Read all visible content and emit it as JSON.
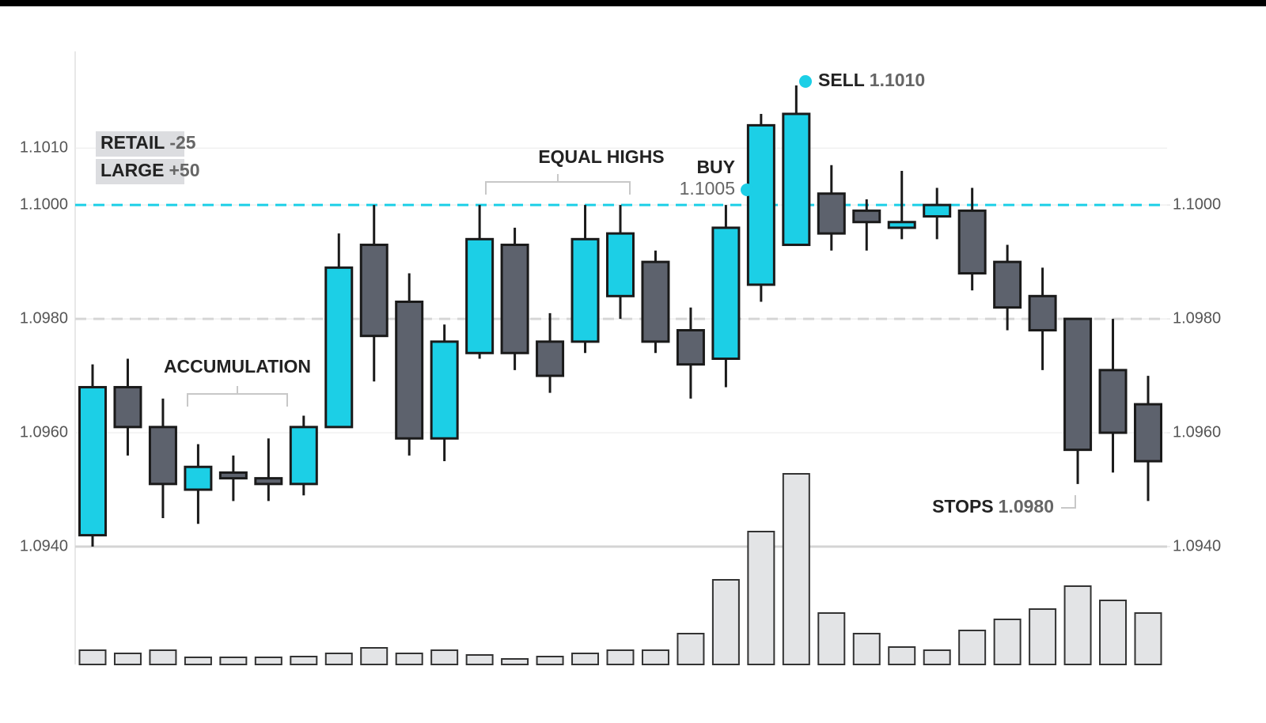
{
  "chart_data": {
    "type": "candlestick",
    "ylim": [
      1.094,
      1.1026
    ],
    "yticks": [
      {
        "value": 1.094,
        "label": "1.0940"
      },
      {
        "value": 1.096,
        "label": "1.0960"
      },
      {
        "value": 1.098,
        "label": "1.0980"
      },
      {
        "value": 1.1,
        "label": "1.1000"
      },
      {
        "value": 1.101,
        "label": "1.1010"
      }
    ],
    "y2lim": [
      1.094,
      1.1026
    ],
    "y2ticks": [
      {
        "value": 1.094,
        "label": "1.0940"
      },
      {
        "value": 1.096,
        "label": "1.0960"
      },
      {
        "value": 1.098,
        "label": "1.0980"
      },
      {
        "value": 1.1,
        "label": "1.1000"
      }
    ],
    "grid": true,
    "bull_color": "#1ccfe6",
    "bear_color": "#5d626d",
    "candles": {
      "open": [
        1.0942,
        1.0968,
        1.0961,
        1.095,
        1.0953,
        1.0952,
        1.0951,
        1.0961,
        1.0993,
        1.0983,
        1.0959,
        1.0974,
        1.0993,
        1.0976,
        1.0976,
        1.0984,
        1.099,
        1.0978,
        1.0973,
        1.0986,
        1.0993,
        1.1002,
        1.0999,
        1.0996,
        1.0998,
        1.0999,
        1.099,
        1.0984,
        1.098,
        1.0971,
        1.0965
      ],
      "high": [
        1.0972,
        1.0973,
        1.0966,
        1.0958,
        1.0956,
        1.0959,
        1.0963,
        1.0995,
        1.1,
        1.0988,
        1.0979,
        1.1,
        1.0996,
        1.0981,
        1.1,
        1.1,
        1.0992,
        1.0982,
        1.1,
        1.1016,
        1.1021,
        1.1007,
        1.1001,
        1.1006,
        1.1003,
        1.1003,
        1.0993,
        1.0989,
        1.098,
        1.098,
        1.097
      ],
      "low": [
        1.094,
        1.0956,
        1.0945,
        1.0944,
        1.0948,
        1.0948,
        1.0949,
        1.0961,
        1.0969,
        1.0956,
        1.0955,
        1.0973,
        1.0971,
        1.0967,
        1.0974,
        1.098,
        1.0974,
        1.0966,
        1.0968,
        1.0983,
        1.0993,
        1.0992,
        1.0992,
        1.0994,
        1.0994,
        1.0985,
        1.0978,
        1.0971,
        1.0951,
        1.0953,
        1.0948
      ],
      "close": [
        1.0968,
        1.0961,
        1.0951,
        1.0954,
        1.0952,
        1.0951,
        1.0961,
        1.0989,
        1.0977,
        1.0959,
        1.0976,
        1.0994,
        1.0974,
        1.097,
        1.0994,
        1.0995,
        1.0976,
        1.0972,
        1.0996,
        1.1014,
        1.1016,
        1.0995,
        1.0997,
        1.0997,
        1.1,
        1.0988,
        1.0982,
        1.0978,
        1.0957,
        1.096,
        1.0955
      ]
    },
    "volume": {
      "color": "#e3e4e6",
      "values": [
        18,
        14,
        18,
        9,
        9,
        9,
        10,
        14,
        21,
        14,
        18,
        12,
        7,
        10,
        14,
        18,
        18,
        39,
        107,
        168,
        241,
        65,
        39,
        22,
        18,
        43,
        57,
        70,
        99,
        81,
        65
      ]
    },
    "levels": [
      {
        "value": 1.1,
        "color": "#1ccfe6"
      },
      {
        "value": 1.098,
        "color": "#d6d6d6"
      }
    ],
    "badges": [
      {
        "label": "RETAIL",
        "value": "-25"
      },
      {
        "label": "LARGE",
        "value": "+50"
      }
    ],
    "annotations": [
      {
        "label": "ACCUMULATION"
      },
      {
        "label": "EQUAL HIGHS"
      },
      {
        "label": "BUY",
        "value": "1.1005"
      },
      {
        "label": "SELL",
        "value": "1.1010"
      },
      {
        "label": "STOPS",
        "value": "1.0980"
      }
    ]
  }
}
